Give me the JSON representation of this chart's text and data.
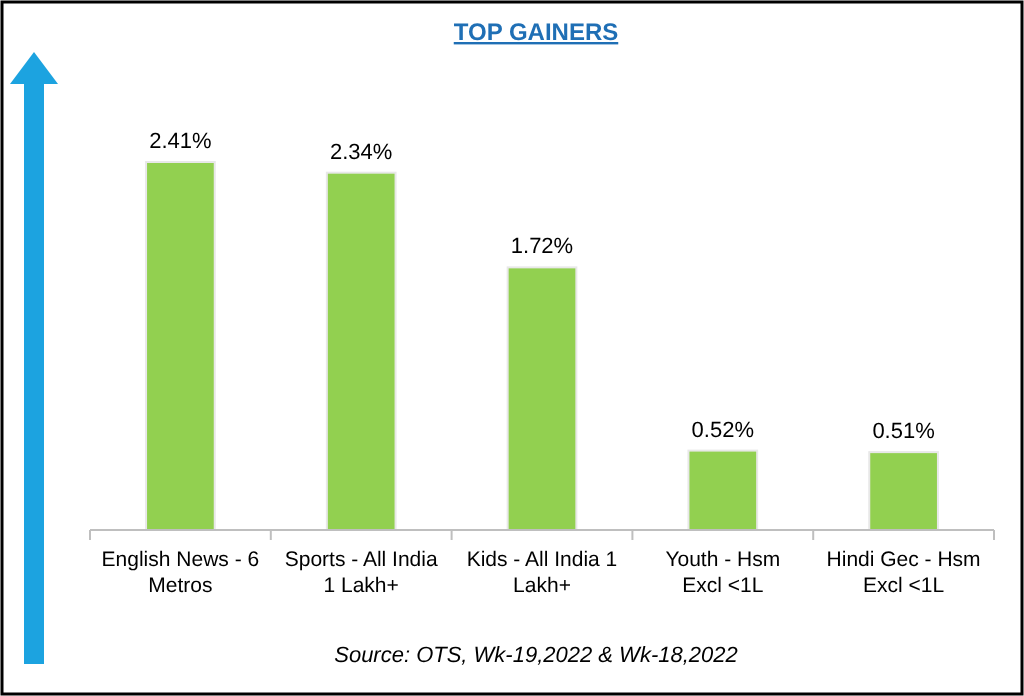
{
  "chart_data": {
    "type": "bar",
    "title": "TOP GAINERS",
    "categories": [
      "English News - 6 Metros",
      "Sports - All India 1 Lakh+",
      "Kids - All India 1 Lakh+",
      "Youth - Hsm Excl <1L",
      "Hindi Gec - Hsm Excl <1L"
    ],
    "values": [
      2.41,
      2.34,
      1.72,
      0.52,
      0.51
    ],
    "value_labels": [
      "2.41%",
      "2.34%",
      "1.72%",
      "0.52%",
      "0.51%"
    ],
    "color": "#92d050",
    "ylim": [
      0,
      2.41
    ],
    "annotations": [
      "Source: OTS, Wk-19,2022 & Wk-18,2022"
    ]
  }
}
